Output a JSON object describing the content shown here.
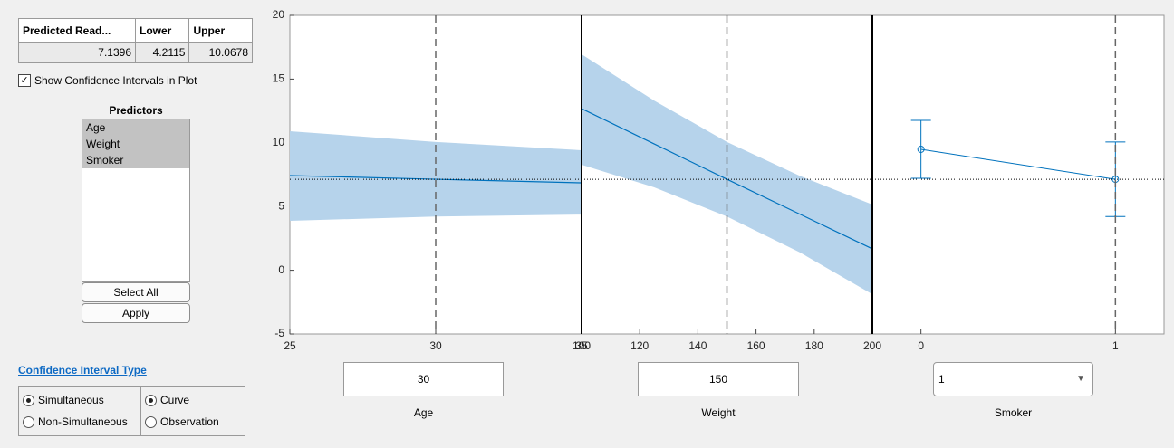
{
  "table": {
    "columns": [
      "Predicted Read...",
      "Lower",
      "Upper"
    ],
    "rows": [
      [
        7.1396,
        4.2115,
        10.0678
      ]
    ]
  },
  "checkbox": {
    "label": "Show Confidence Intervals in Plot",
    "checked": true
  },
  "predictors": {
    "title": "Predictors",
    "items": [
      "Age",
      "Weight",
      "Smoker"
    ]
  },
  "buttons": [
    "Select All",
    "Apply"
  ],
  "ci_type": {
    "title": "Confidence Interval Type",
    "simultaneity": {
      "options": [
        "Simultaneous",
        "Non-Simultaneous"
      ],
      "selected": 0
    },
    "bounds": {
      "options": [
        "Curve",
        "Observation"
      ],
      "selected": 0
    }
  },
  "chart_data": [
    {
      "type": "band",
      "xlabel": "Age",
      "current": 30,
      "xlim": [
        25,
        35
      ],
      "xticks": [
        25,
        30,
        35
      ],
      "ylim": [
        -5,
        20
      ],
      "yticks": [
        -5,
        0,
        5,
        10,
        15,
        20
      ],
      "color": "#0072bd",
      "band_color": "#b6d3eb",
      "x": [
        25,
        30,
        35
      ],
      "values": [
        7.43,
        7.1396,
        6.86
      ],
      "lower": [
        3.88,
        4.2115,
        4.37
      ],
      "upper": [
        10.91,
        10.0678,
        9.42
      ]
    },
    {
      "type": "band",
      "xlabel": "Weight",
      "current": 150,
      "xlim": [
        100,
        200
      ],
      "xticks": [
        100,
        120,
        140,
        160,
        180,
        200
      ],
      "ylim": [
        -5,
        20
      ],
      "color": "#0072bd",
      "band_color": "#b6d3eb",
      "x": [
        100,
        125,
        150,
        175,
        200
      ],
      "values": [
        12.68,
        9.91,
        7.1396,
        4.41,
        1.68
      ],
      "lower": [
        8.28,
        6.51,
        4.2115,
        1.41,
        -1.88
      ],
      "upper": [
        16.95,
        13.31,
        10.0678,
        7.41,
        5.16
      ]
    },
    {
      "type": "errorbar",
      "xlabel": "Smoker",
      "current": 1,
      "xlim": [
        -0.25,
        1.25
      ],
      "xticks": [
        0,
        1
      ],
      "ylim": [
        -5,
        20
      ],
      "color": "#0072bd",
      "x": [
        0,
        1
      ],
      "values": [
        9.49,
        7.1396
      ],
      "lower": [
        7.22,
        4.2115
      ],
      "upper": [
        11.76,
        10.0678
      ]
    }
  ]
}
